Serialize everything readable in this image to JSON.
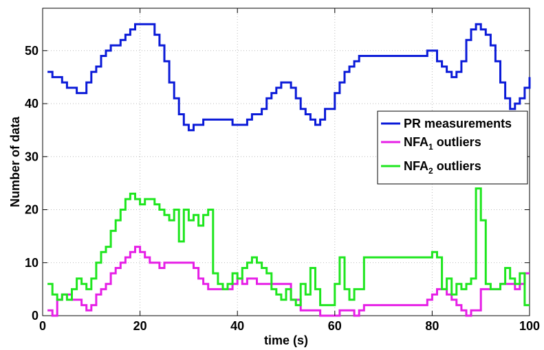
{
  "chart_data": {
    "type": "line",
    "step": true,
    "xlabel": "time (s)",
    "ylabel": "Number of data",
    "xlim": [
      0,
      100
    ],
    "ylim": [
      0,
      58
    ],
    "xticks": [
      0,
      20,
      40,
      60,
      80,
      100
    ],
    "yticks": [
      0,
      10,
      20,
      30,
      40,
      50
    ],
    "grid": true,
    "legend_position": "right",
    "series": [
      {
        "name": "PR measurements",
        "color": "#0a1ad8",
        "x": [
          1,
          2,
          4,
          5,
          7,
          9,
          10,
          11,
          12,
          13,
          14,
          16,
          17,
          18,
          19,
          20,
          23,
          24,
          25,
          26,
          27,
          28,
          29,
          30,
          31,
          33,
          35,
          39,
          42,
          43,
          45,
          46,
          47,
          48,
          49,
          50,
          51,
          52,
          53,
          54,
          55,
          56,
          57,
          58,
          60,
          61,
          62,
          63,
          64,
          65,
          79,
          80,
          81,
          82,
          83,
          84,
          85,
          86,
          87,
          88,
          89,
          90,
          91,
          92,
          93,
          94,
          95,
          96,
          97,
          98,
          99,
          100
        ],
        "values": [
          46,
          45,
          44,
          43,
          42,
          44,
          46,
          47,
          49,
          50,
          51,
          52,
          53,
          54,
          55,
          55,
          53,
          51,
          48,
          44,
          41,
          38,
          36,
          35,
          36,
          37,
          37,
          36,
          37,
          38,
          39,
          41,
          42,
          43,
          44,
          44,
          43,
          41,
          39,
          38,
          37,
          36,
          37,
          39,
          42,
          44,
          46,
          47,
          48,
          49,
          50,
          50,
          48,
          47,
          46,
          45,
          46,
          48,
          52,
          54,
          55,
          54,
          53,
          51,
          48,
          44,
          41,
          39,
          40,
          41,
          43,
          45
        ]
      },
      {
        "name": "NFA1 outliers",
        "name_parts": [
          "NFA",
          "1",
          " outliers"
        ],
        "color": "#e61ee6",
        "x": [
          1,
          2,
          3,
          4,
          5,
          6,
          8,
          9,
          10,
          11,
          12,
          13,
          14,
          15,
          16,
          17,
          18,
          19,
          20,
          21,
          22,
          23,
          24,
          25,
          28,
          31,
          32,
          33,
          34,
          35,
          36,
          37,
          38,
          39,
          40,
          41,
          42,
          43,
          44,
          45,
          50,
          51,
          53,
          54,
          57,
          58,
          59,
          60,
          61,
          62,
          63,
          64,
          65,
          66,
          79,
          80,
          81,
          82,
          83,
          84,
          85,
          86,
          87,
          88,
          89,
          90,
          93,
          94,
          95,
          96,
          97,
          98,
          99,
          100
        ],
        "values": [
          1,
          0,
          3,
          4,
          4,
          3,
          2,
          1,
          2,
          4,
          5,
          6,
          8,
          9,
          10,
          11,
          12,
          13,
          12,
          11,
          10,
          10,
          9,
          10,
          10,
          9,
          7,
          6,
          5,
          5,
          5,
          5,
          5,
          6,
          7,
          6,
          7,
          7,
          6,
          6,
          6,
          3,
          1,
          1,
          0,
          0,
          0,
          0,
          1,
          1,
          1,
          0,
          1,
          2,
          3,
          4,
          5,
          5,
          4,
          3,
          2,
          1,
          0,
          1,
          1,
          5,
          5,
          6,
          6,
          6,
          5,
          6,
          8,
          8
        ]
      },
      {
        "name": "NFA2 outliers",
        "name_parts": [
          "NFA",
          "2",
          " outliers"
        ],
        "color": "#1ee61e",
        "x": [
          1,
          2,
          3,
          4,
          5,
          6,
          7,
          8,
          9,
          10,
          11,
          12,
          13,
          14,
          15,
          16,
          17,
          18,
          19,
          20,
          21,
          23,
          24,
          25,
          26,
          27,
          28,
          29,
          30,
          31,
          32,
          33,
          34,
          35,
          36,
          37,
          38,
          39,
          40,
          41,
          42,
          43,
          44,
          45,
          46,
          47,
          48,
          49,
          50,
          51,
          52,
          53,
          54,
          55,
          56,
          57,
          58,
          59,
          60,
          61,
          62,
          63,
          64,
          65,
          66,
          67,
          79,
          80,
          81,
          82,
          83,
          84,
          85,
          86,
          87,
          88,
          89,
          90,
          91,
          92,
          93,
          94,
          95,
          96,
          97,
          98,
          99,
          100
        ],
        "values": [
          6,
          4,
          3,
          4,
          3,
          5,
          7,
          6,
          5,
          7,
          10,
          12,
          13,
          16,
          18,
          20,
          22,
          23,
          22,
          21,
          22,
          21,
          20,
          19,
          18,
          20,
          14,
          20,
          18,
          19,
          17,
          19,
          20,
          8,
          6,
          5,
          6,
          8,
          7,
          9,
          10,
          11,
          10,
          9,
          8,
          5,
          4,
          3,
          5,
          3,
          2,
          6,
          4,
          9,
          5,
          2,
          2,
          2,
          6,
          11,
          5,
          3,
          5,
          5,
          11,
          11,
          11,
          12,
          11,
          5,
          7,
          4,
          6,
          5,
          6,
          7,
          24,
          18,
          6,
          5,
          5,
          6,
          9,
          7,
          6,
          8,
          2,
          2
        ]
      }
    ]
  }
}
